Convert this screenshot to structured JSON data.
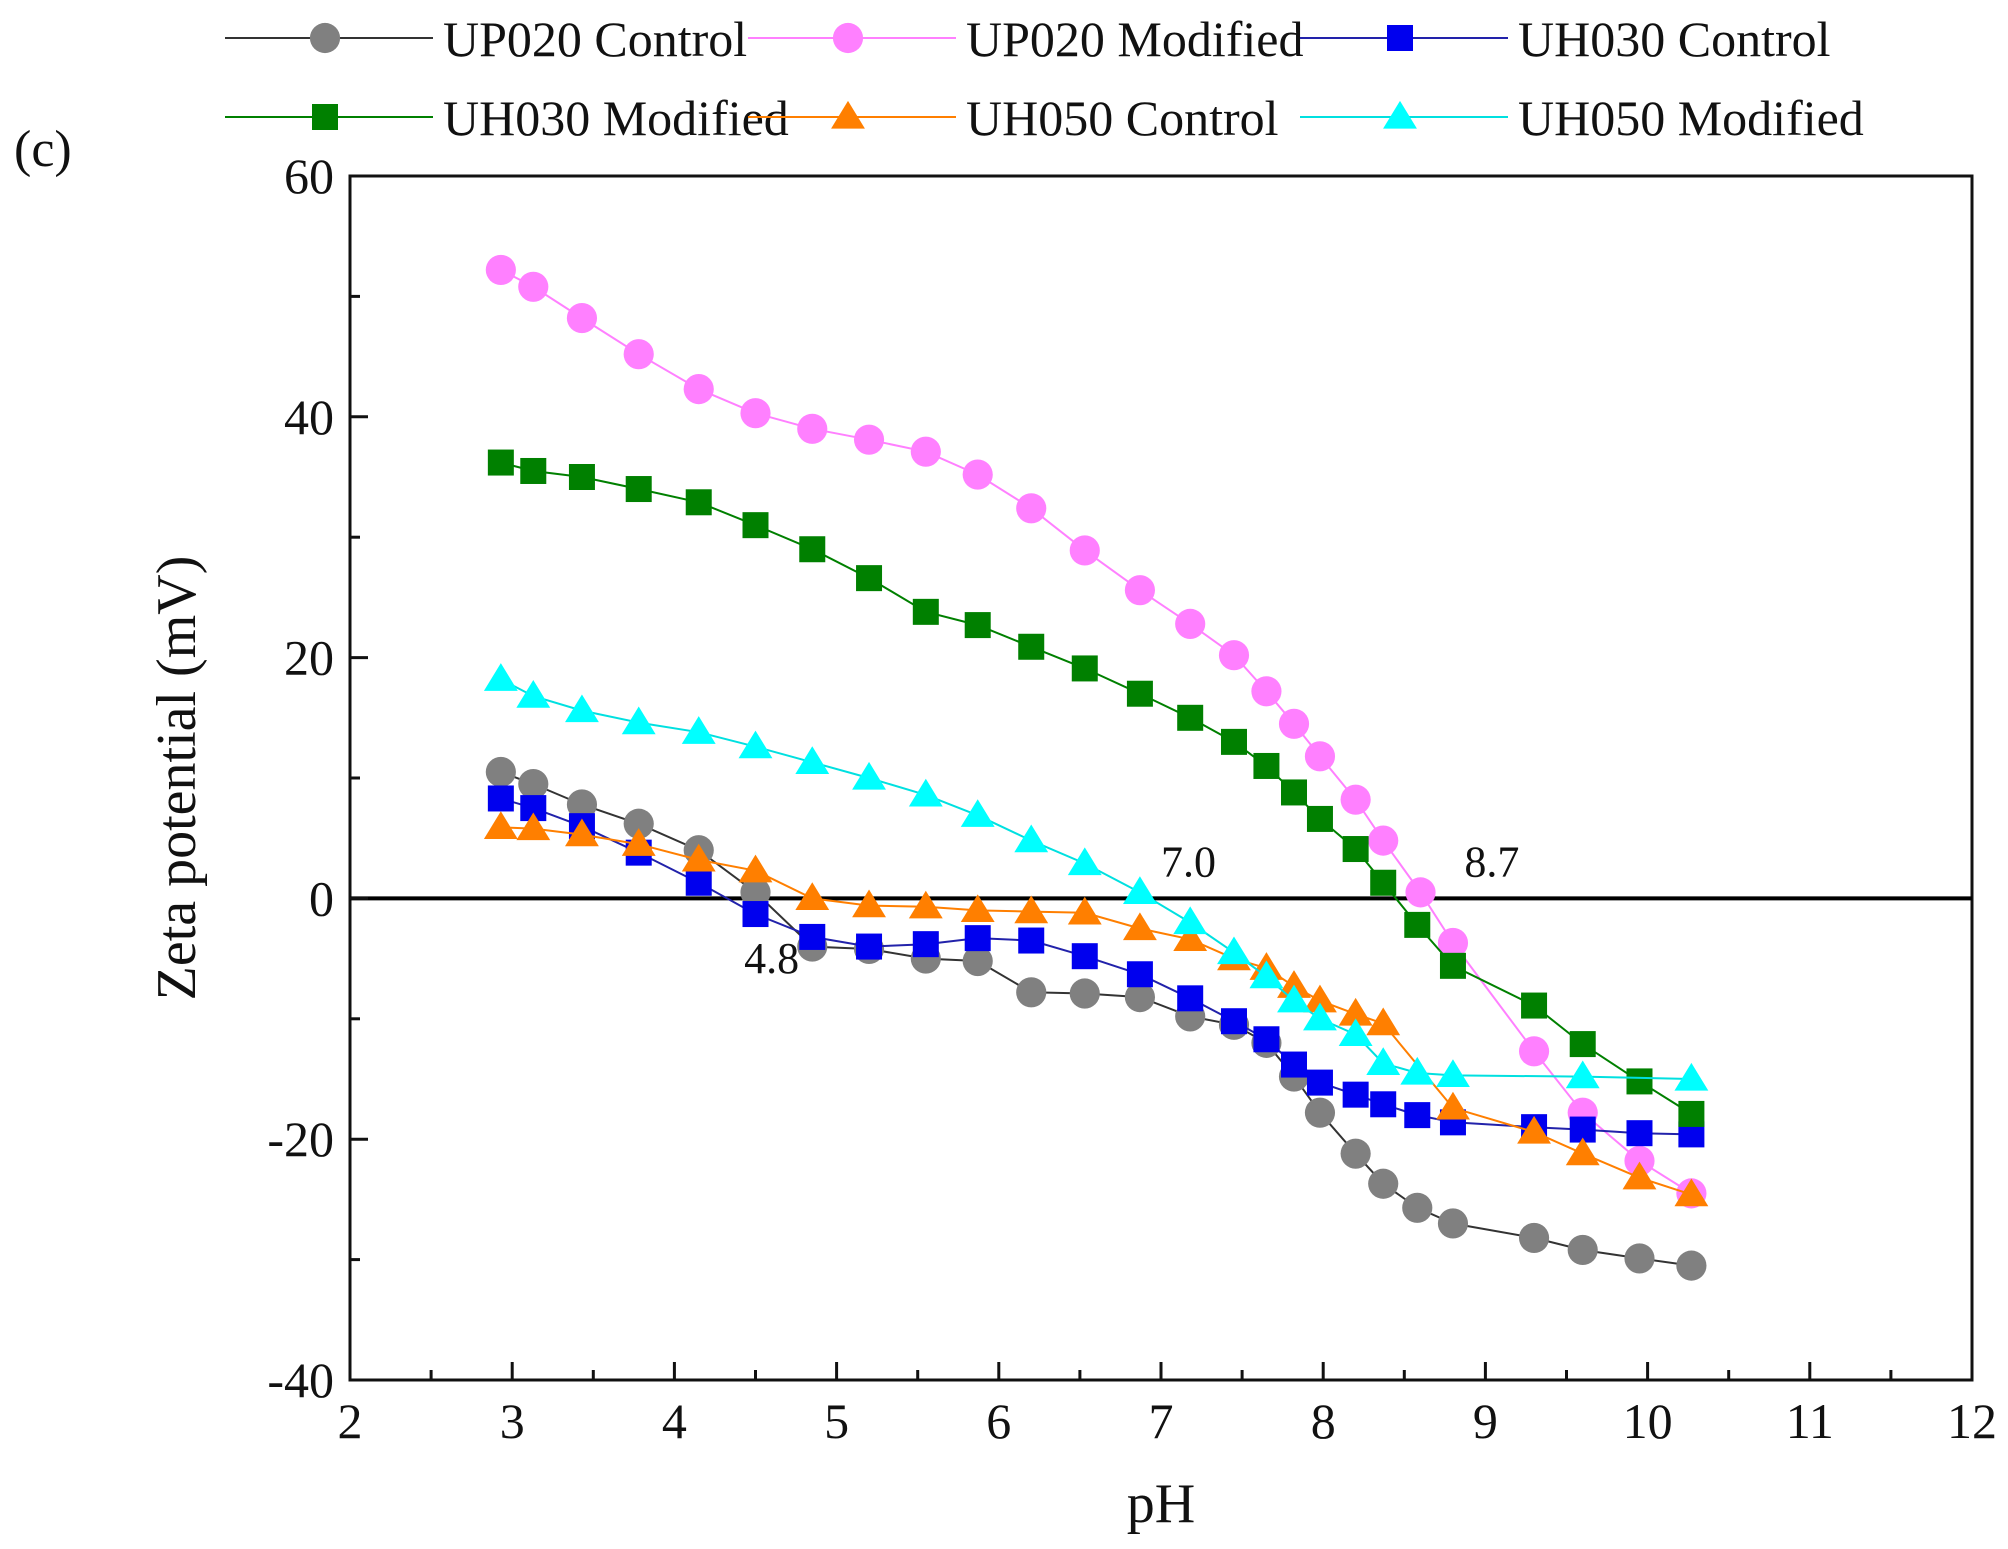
{
  "chart_data": {
    "type": "line",
    "panel_label": "(c)",
    "xlabel": "pH",
    "ylabel": "Zeta potential (mV)",
    "xlim": [
      2,
      12
    ],
    "ylim": [
      -40,
      60
    ],
    "x_ticks": [
      2,
      3,
      4,
      5,
      6,
      7,
      8,
      9,
      10,
      11,
      12
    ],
    "y_ticks": [
      -40,
      -20,
      0,
      20,
      40,
      60
    ],
    "x_tick_labels": [
      "2",
      "3",
      "4",
      "5",
      "6",
      "7",
      "8",
      "9",
      "10",
      "11",
      "12"
    ],
    "y_tick_labels": [
      "-40",
      "-20",
      "0",
      "20",
      "40",
      "60"
    ],
    "zero_line": true,
    "legend_position": "top",
    "series": [
      {
        "name": "UP020 Control",
        "marker": "circle",
        "color": "#808080",
        "line_color": "#333333",
        "x": [
          2.93,
          3.13,
          3.43,
          3.78,
          4.15,
          4.5,
          4.85,
          5.2,
          5.55,
          5.87,
          6.2,
          6.53,
          6.87,
          7.18,
          7.45,
          7.65,
          7.82,
          7.98,
          8.2,
          8.37,
          8.58,
          8.8,
          9.3,
          9.6,
          9.95,
          10.27
        ],
        "y": [
          10.5,
          9.5,
          7.8,
          6.2,
          4.0,
          0.5,
          -4.0,
          -4.2,
          -5.0,
          -5.2,
          -7.8,
          -7.9,
          -8.2,
          -9.8,
          -10.5,
          -12.0,
          -14.8,
          -17.8,
          -21.2,
          -23.7,
          -25.7,
          -27.0,
          -28.2,
          -29.2,
          -29.9,
          -30.5
        ]
      },
      {
        "name": "UP020 Modified",
        "marker": "circle",
        "color": "#ff80ff",
        "line_color": "#ff80ff",
        "x": [
          2.93,
          3.13,
          3.43,
          3.78,
          4.15,
          4.5,
          4.85,
          5.2,
          5.55,
          5.87,
          6.2,
          6.53,
          6.87,
          7.18,
          7.45,
          7.65,
          7.82,
          7.98,
          8.2,
          8.37,
          8.6,
          8.8,
          9.3,
          9.6,
          9.95,
          10.27
        ],
        "y": [
          52.2,
          50.8,
          48.2,
          45.2,
          42.3,
          40.3,
          39.0,
          38.1,
          37.1,
          35.2,
          32.4,
          28.9,
          25.6,
          22.8,
          20.2,
          17.2,
          14.5,
          11.8,
          8.2,
          4.8,
          0.5,
          -3.7,
          -12.7,
          -17.8,
          -21.8,
          -24.5
        ]
      },
      {
        "name": "UH030 Control",
        "marker": "square",
        "color": "#0000ee",
        "line_color": "#2222aa",
        "x": [
          2.93,
          3.13,
          3.43,
          3.78,
          4.15,
          4.5,
          4.85,
          5.2,
          5.55,
          5.87,
          6.2,
          6.53,
          6.87,
          7.18,
          7.45,
          7.65,
          7.82,
          7.98,
          8.2,
          8.37,
          8.58,
          8.8,
          9.3,
          9.6,
          9.95,
          10.27
        ],
        "y": [
          8.3,
          7.5,
          6.0,
          3.8,
          1.3,
          -1.3,
          -3.2,
          -4.0,
          -3.8,
          -3.3,
          -3.5,
          -4.8,
          -6.3,
          -8.3,
          -10.2,
          -11.7,
          -13.8,
          -15.3,
          -16.3,
          -17.1,
          -18.0,
          -18.6,
          -19.0,
          -19.2,
          -19.5,
          -19.6
        ]
      },
      {
        "name": "UH030 Modified",
        "marker": "square",
        "color": "#008000",
        "line_color": "#008000",
        "x": [
          2.93,
          3.13,
          3.43,
          3.78,
          4.15,
          4.5,
          4.85,
          5.2,
          5.55,
          5.87,
          6.2,
          6.53,
          6.87,
          7.18,
          7.45,
          7.65,
          7.82,
          7.98,
          8.2,
          8.37,
          8.58,
          8.8,
          9.3,
          9.6,
          9.95,
          10.27
        ],
        "y": [
          36.2,
          35.5,
          35.0,
          34.0,
          32.9,
          31.0,
          29.0,
          26.6,
          23.8,
          22.7,
          20.9,
          19.1,
          17.0,
          15.0,
          13.0,
          11.0,
          8.8,
          6.6,
          4.1,
          1.3,
          -2.2,
          -5.6,
          -8.9,
          -12.1,
          -15.2,
          -17.9
        ]
      },
      {
        "name": "UH050 Control",
        "marker": "triangle",
        "color": "#ff7f00",
        "line_color": "#ff7f00",
        "x": [
          2.93,
          3.13,
          3.43,
          3.78,
          4.15,
          4.5,
          4.85,
          5.2,
          5.55,
          5.87,
          6.2,
          6.53,
          6.87,
          7.18,
          7.45,
          7.65,
          7.82,
          7.98,
          8.2,
          8.37,
          8.8,
          9.3,
          9.6,
          9.95,
          10.27
        ],
        "y": [
          5.9,
          5.8,
          5.3,
          4.5,
          3.2,
          2.3,
          0.0,
          -0.6,
          -0.7,
          -1.0,
          -1.1,
          -1.2,
          -2.5,
          -3.4,
          -5.0,
          -5.8,
          -7.3,
          -8.5,
          -9.6,
          -10.4,
          -17.4,
          -19.4,
          -21.2,
          -23.2,
          -24.6
        ]
      },
      {
        "name": "UH050 Modified",
        "marker": "triangle",
        "color": "#00ffff",
        "line_color": "#00e0e0",
        "x": [
          2.93,
          3.13,
          3.43,
          3.78,
          4.15,
          4.5,
          4.85,
          5.2,
          5.55,
          5.87,
          6.2,
          6.53,
          6.87,
          7.18,
          7.45,
          7.65,
          7.82,
          7.98,
          8.2,
          8.37,
          8.58,
          8.8,
          9.6,
          10.27
        ],
        "y": [
          18.2,
          16.8,
          15.6,
          14.6,
          13.8,
          12.6,
          11.3,
          10.0,
          8.6,
          6.9,
          4.8,
          2.9,
          0.5,
          -2.0,
          -4.5,
          -6.5,
          -8.5,
          -10.0,
          -11.3,
          -13.7,
          -14.5,
          -14.7,
          -14.8,
          -15.0
        ]
      }
    ],
    "annotations": [
      {
        "text": "4.8",
        "x": 4.43,
        "y": -6.2
      },
      {
        "text": "7.0",
        "x": 7.0,
        "y": 1.8
      },
      {
        "text": "8.7",
        "x": 8.87,
        "y": 1.8
      }
    ]
  }
}
